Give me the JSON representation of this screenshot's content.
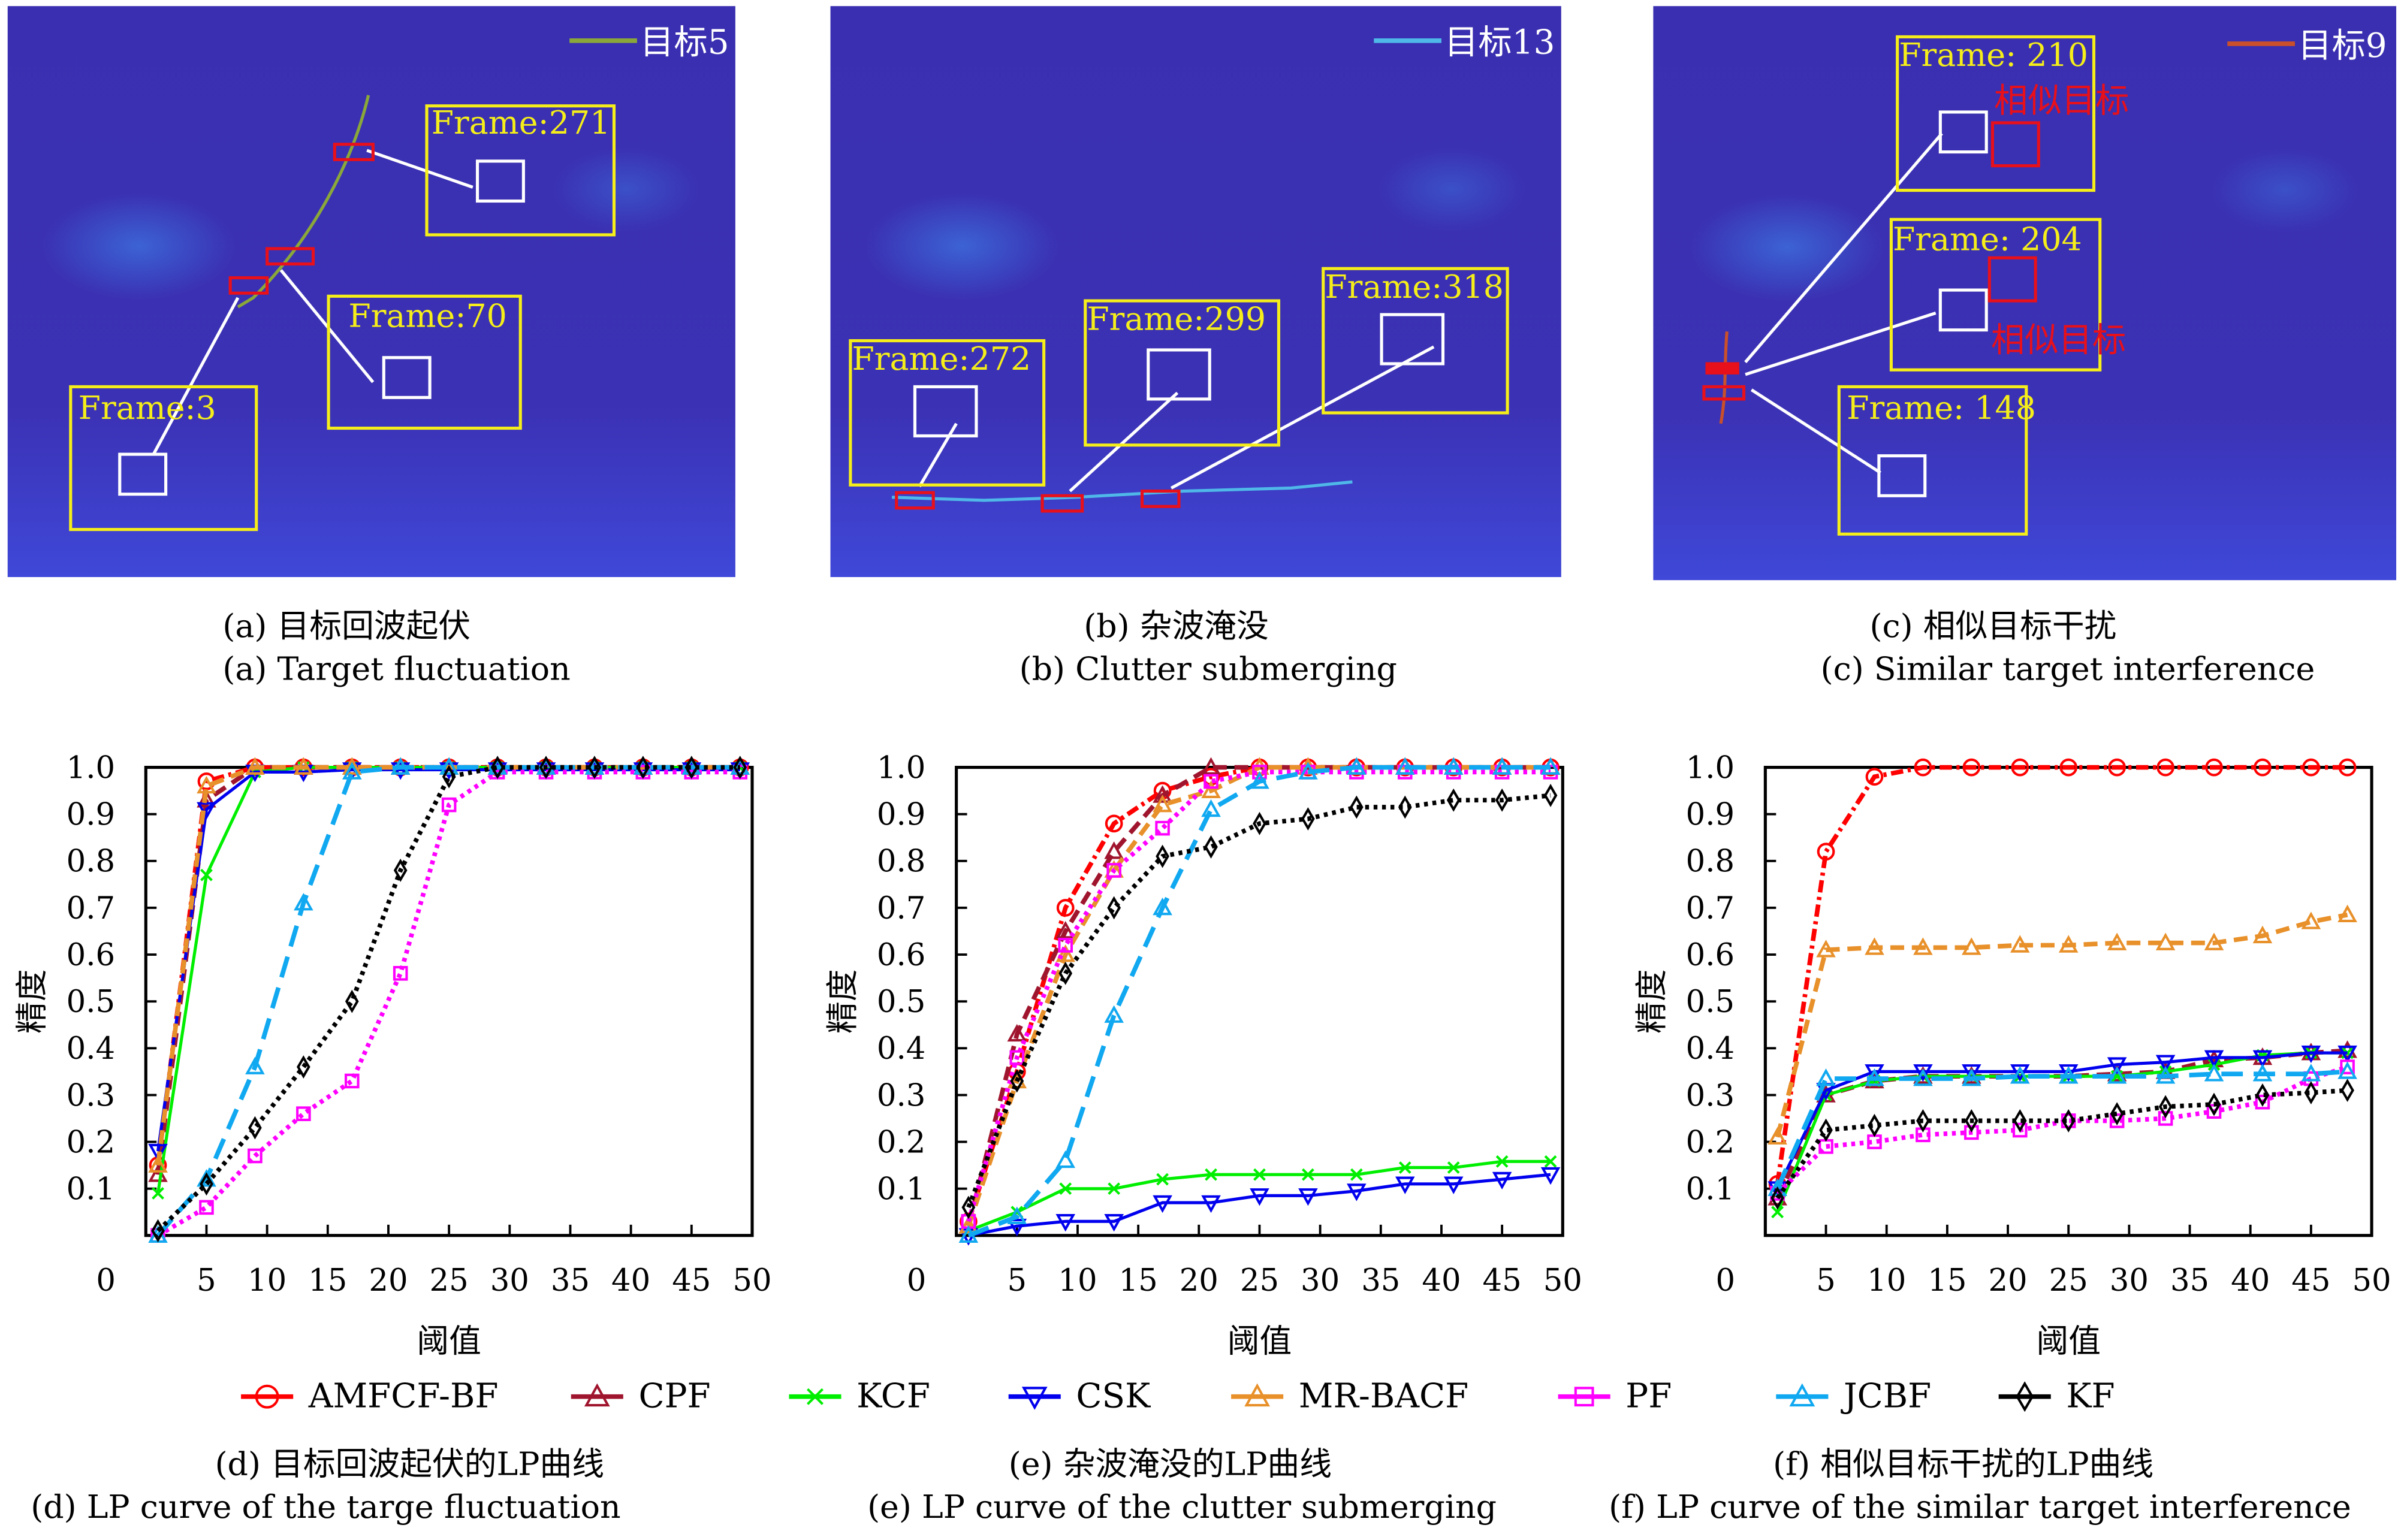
{
  "panels": [
    {
      "id": "a",
      "track_label": "目标5",
      "track_color": "#8aa83a",
      "frames": [
        "Frame:271",
        "Frame:70",
        "Frame:3"
      ],
      "caption_cn": "(a) 目标回波起伏",
      "caption_en": "(a) Target fluctuation"
    },
    {
      "id": "b",
      "track_label": "目标13",
      "track_color": "#4fb8e8",
      "frames": [
        "Frame:272",
        "Frame:299",
        "Frame:318"
      ],
      "caption_cn": "(b) 杂波淹没",
      "caption_en": "(b) Clutter submerging"
    },
    {
      "id": "c",
      "track_label": "目标9",
      "track_color": "#c9502a",
      "frames": [
        "Frame: 210",
        "Frame: 204",
        "Frame: 148"
      ],
      "similar_label": "相似目标",
      "caption_cn": "(c) 相似目标干扰",
      "caption_en": "(c) Similar target interference"
    }
  ],
  "legend": [
    {
      "name": "AMFCF-BF",
      "color": "#ff0000",
      "marker": "circle",
      "dash": "dashdot"
    },
    {
      "name": "CPF",
      "color": "#a0152e",
      "marker": "triangle-up",
      "dash": "dash"
    },
    {
      "name": "KCF",
      "color": "#00ee00",
      "marker": "x",
      "dash": "solid"
    },
    {
      "name": "CSK",
      "color": "#0000ee",
      "marker": "triangle-down",
      "dash": "solid"
    },
    {
      "name": "MR-BACF",
      "color": "#e8902a",
      "marker": "triangle-up",
      "dash": "dash"
    },
    {
      "name": "PF",
      "color": "#ff00ff",
      "marker": "square",
      "dash": "dot"
    },
    {
      "name": "JCBF",
      "color": "#10a8f0",
      "marker": "triangle-up",
      "dash": "longdash"
    },
    {
      "name": "KF",
      "color": "#000000",
      "marker": "diamond",
      "dash": "dot"
    }
  ],
  "chart_data": [
    {
      "type": "line",
      "id": "d",
      "xlabel": "阈值",
      "ylabel": "精度",
      "caption_cn": "(d) 目标回波起伏的LP曲线",
      "caption_en": "(d) LP curve of the targe fluctuation",
      "xlim": [
        0,
        50
      ],
      "ylim": [
        0,
        1.0
      ],
      "xticks": [
        "0",
        "5",
        "10",
        "15",
        "20",
        "25",
        "30",
        "35",
        "40",
        "45",
        "50"
      ],
      "yticks": [
        "0.1",
        "0.2",
        "0.3",
        "0.4",
        "0.5",
        "0.6",
        "0.7",
        "0.8",
        "0.9",
        "1.0"
      ],
      "x": [
        1,
        5,
        9,
        13,
        17,
        21,
        25,
        29,
        33,
        37,
        41,
        45,
        49
      ],
      "series": [
        {
          "name": "AMFCF-BF",
          "values": [
            0.15,
            0.97,
            1.0,
            1.0,
            1.0,
            1.0,
            1.0,
            1.0,
            1.0,
            1.0,
            1.0,
            1.0,
            1.0
          ]
        },
        {
          "name": "CPF",
          "values": [
            0.13,
            0.93,
            1.0,
            1.0,
            1.0,
            1.0,
            1.0,
            1.0,
            1.0,
            1.0,
            1.0,
            1.0,
            1.0
          ]
        },
        {
          "name": "KCF",
          "values": [
            0.09,
            0.77,
            0.99,
            1.0,
            1.0,
            1.0,
            1.0,
            1.0,
            1.0,
            1.0,
            1.0,
            1.0,
            1.0
          ]
        },
        {
          "name": "CSK",
          "values": [
            0.18,
            0.91,
            0.99,
            0.99,
            0.995,
            0.995,
            0.995,
            0.995,
            0.995,
            0.995,
            0.995,
            0.995,
            0.995
          ]
        },
        {
          "name": "MR-BACF",
          "values": [
            0.15,
            0.96,
            1.0,
            1.0,
            1.0,
            1.0,
            1.0,
            1.0,
            1.0,
            1.0,
            1.0,
            1.0,
            1.0
          ]
        },
        {
          "name": "PF",
          "values": [
            0.0,
            0.06,
            0.17,
            0.26,
            0.33,
            0.56,
            0.92,
            0.99,
            0.99,
            0.99,
            0.99,
            0.99,
            0.99
          ]
        },
        {
          "name": "JCBF",
          "values": [
            0.0,
            0.12,
            0.36,
            0.71,
            0.99,
            1.0,
            1.0,
            1.0,
            1.0,
            1.0,
            1.0,
            1.0,
            1.0
          ]
        },
        {
          "name": "KF",
          "values": [
            0.01,
            0.11,
            0.23,
            0.36,
            0.5,
            0.78,
            0.98,
            1.0,
            1.0,
            1.0,
            1.0,
            1.0,
            1.0
          ]
        }
      ]
    },
    {
      "type": "line",
      "id": "e",
      "xlabel": "阈值",
      "ylabel": "精度",
      "caption_cn": "(e) 杂波淹没的LP曲线",
      "caption_en": "(e) LP curve of the clutter submerging",
      "xlim": [
        0,
        50
      ],
      "ylim": [
        0,
        1.0
      ],
      "xticks": [
        "0",
        "5",
        "10",
        "15",
        "20",
        "25",
        "30",
        "35",
        "40",
        "45",
        "50"
      ],
      "yticks": [
        "0.1",
        "0.2",
        "0.3",
        "0.4",
        "0.5",
        "0.6",
        "0.7",
        "0.8",
        "0.9",
        "1.0"
      ],
      "x": [
        1,
        5,
        9,
        13,
        17,
        21,
        25,
        29,
        33,
        37,
        41,
        45,
        49
      ],
      "series": [
        {
          "name": "AMFCF-BF",
          "values": [
            0.03,
            0.35,
            0.7,
            0.88,
            0.95,
            0.98,
            1.0,
            1.0,
            1.0,
            1.0,
            1.0,
            1.0,
            1.0
          ]
        },
        {
          "name": "CPF",
          "values": [
            0.02,
            0.43,
            0.65,
            0.82,
            0.94,
            1.0,
            1.0,
            1.0,
            1.0,
            1.0,
            1.0,
            1.0,
            1.0
          ]
        },
        {
          "name": "KCF",
          "values": [
            0.01,
            0.05,
            0.1,
            0.1,
            0.12,
            0.13,
            0.13,
            0.13,
            0.13,
            0.145,
            0.145,
            0.158,
            0.158
          ]
        },
        {
          "name": "CSK",
          "values": [
            0.0,
            0.02,
            0.03,
            0.03,
            0.07,
            0.07,
            0.085,
            0.085,
            0.095,
            0.11,
            0.11,
            0.12,
            0.13
          ]
        },
        {
          "name": "MR-BACF",
          "values": [
            0.02,
            0.33,
            0.6,
            0.78,
            0.92,
            0.95,
            1.0,
            1.0,
            1.0,
            1.0,
            1.0,
            1.0,
            1.0
          ]
        },
        {
          "name": "PF",
          "values": [
            0.03,
            0.38,
            0.62,
            0.78,
            0.87,
            0.97,
            0.99,
            0.99,
            0.99,
            0.99,
            0.99,
            0.99,
            0.99
          ]
        },
        {
          "name": "JCBF",
          "values": [
            0.0,
            0.04,
            0.16,
            0.47,
            0.7,
            0.91,
            0.97,
            0.99,
            1.0,
            1.0,
            1.0,
            1.0,
            1.0
          ]
        },
        {
          "name": "KF",
          "values": [
            0.06,
            0.33,
            0.56,
            0.7,
            0.81,
            0.83,
            0.88,
            0.89,
            0.915,
            0.915,
            0.93,
            0.93,
            0.94
          ]
        }
      ]
    },
    {
      "type": "line",
      "id": "f",
      "xlabel": "阈值",
      "ylabel": "精度",
      "caption_cn": "(f) 相似目标干扰的LP曲线",
      "caption_en": "(f) LP curve of the similar target interference",
      "xlim": [
        0,
        50
      ],
      "ylim": [
        0,
        1.0
      ],
      "xticks": [
        "0",
        "5",
        "10",
        "15",
        "20",
        "25",
        "30",
        "35",
        "40",
        "45",
        "50"
      ],
      "yticks": [
        "0.1",
        "0.2",
        "0.3",
        "0.4",
        "0.5",
        "0.6",
        "0.7",
        "0.8",
        "0.9",
        "1.0"
      ],
      "x": [
        1,
        5,
        9,
        13,
        17,
        21,
        25,
        29,
        33,
        37,
        41,
        45,
        48
      ],
      "series": [
        {
          "name": "AMFCF-BF",
          "values": [
            0.11,
            0.82,
            0.98,
            1.0,
            1.0,
            1.0,
            1.0,
            1.0,
            1.0,
            1.0,
            1.0,
            1.0,
            1.0
          ]
        },
        {
          "name": "CPF",
          "values": [
            0.08,
            0.3,
            0.33,
            0.34,
            0.34,
            0.34,
            0.34,
            0.345,
            0.35,
            0.375,
            0.38,
            0.39,
            0.395
          ]
        },
        {
          "name": "KCF",
          "values": [
            0.05,
            0.3,
            0.33,
            0.34,
            0.34,
            0.34,
            0.34,
            0.34,
            0.35,
            0.365,
            0.385,
            0.39,
            0.39
          ]
        },
        {
          "name": "CSK",
          "values": [
            0.1,
            0.31,
            0.35,
            0.35,
            0.35,
            0.35,
            0.35,
            0.365,
            0.37,
            0.38,
            0.38,
            0.39,
            0.39
          ]
        },
        {
          "name": "MR-BACF",
          "values": [
            0.21,
            0.61,
            0.615,
            0.615,
            0.615,
            0.62,
            0.62,
            0.625,
            0.625,
            0.625,
            0.64,
            0.67,
            0.685
          ]
        },
        {
          "name": "PF",
          "values": [
            0.09,
            0.19,
            0.2,
            0.215,
            0.22,
            0.225,
            0.245,
            0.245,
            0.25,
            0.265,
            0.285,
            0.335,
            0.36
          ]
        },
        {
          "name": "JCBF",
          "values": [
            0.1,
            0.335,
            0.335,
            0.335,
            0.335,
            0.34,
            0.34,
            0.34,
            0.34,
            0.345,
            0.345,
            0.345,
            0.35
          ]
        },
        {
          "name": "KF",
          "values": [
            0.08,
            0.225,
            0.235,
            0.245,
            0.245,
            0.245,
            0.245,
            0.26,
            0.275,
            0.28,
            0.3,
            0.305,
            0.31
          ]
        }
      ]
    }
  ]
}
